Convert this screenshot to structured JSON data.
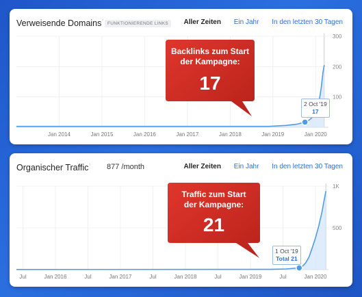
{
  "chart_data": [
    {
      "type": "area",
      "title": "Verweisende Domains",
      "badge": "FUNKTIONIERENDE LINKS",
      "subtitle": "",
      "tabs": [
        "Aller Zeiten",
        "Ein Jahr",
        "In den letzten 30 Tagen"
      ],
      "x_ticks": [
        "Jan 2014",
        "Jan 2015",
        "Jan 2016",
        "Jan 2017",
        "Jan 2018",
        "Jan 2019",
        "Jan 2020"
      ],
      "x_tick_years": [
        2014,
        2015,
        2016,
        2017,
        2018,
        2019,
        2020
      ],
      "xlim": [
        2013.0,
        2020.3
      ],
      "y_ticks": [
        "100",
        "200",
        "300"
      ],
      "y_tick_values": [
        100,
        200,
        300
      ],
      "ylim": [
        0,
        300
      ],
      "x": [
        2013.0,
        2018.9,
        2019.3,
        2019.55,
        2019.75,
        2019.83,
        2019.9,
        2019.97,
        2020.03,
        2020.08,
        2020.13,
        2020.17,
        2020.2
      ],
      "values": [
        3,
        3,
        6,
        10,
        17,
        22,
        30,
        42,
        60,
        85,
        130,
        180,
        205
      ],
      "marker": {
        "x": 2019.75,
        "value": 17,
        "date": "2 Oct '19",
        "value_label": "17"
      },
      "callout": {
        "text_line1": "Backlinks zum Start",
        "text_line2": "der Kampagne:",
        "number": "17"
      }
    },
    {
      "type": "area",
      "title": "Organischer Traffic",
      "badge": "",
      "subtitle": "877 /month",
      "tabs": [
        "Aller Zeiten",
        "Ein Jahr",
        "In den letzten 30 Tagen"
      ],
      "x_ticks": [
        "Jul",
        "Jan 2016",
        "Jul",
        "Jan 2017",
        "Jul",
        "Jan 2018",
        "Jul",
        "Jan 2019",
        "Jul",
        "Jan 2020"
      ],
      "x_tick_years": [
        2015.5,
        2016,
        2016.5,
        2017,
        2017.5,
        2018,
        2018.5,
        2019,
        2019.5,
        2020
      ],
      "xlim": [
        2015.4,
        2020.2
      ],
      "y_ticks": [
        "500",
        "1K"
      ],
      "y_tick_values": [
        500,
        1000
      ],
      "ylim": [
        0,
        1000
      ],
      "x": [
        2015.4,
        2019.3,
        2019.55,
        2019.75,
        2019.8,
        2019.85,
        2019.9,
        2019.95,
        2020.0,
        2020.05,
        2020.1,
        2020.13,
        2020.16
      ],
      "values": [
        2,
        3,
        8,
        21,
        40,
        80,
        150,
        260,
        380,
        520,
        690,
        820,
        940
      ],
      "marker": {
        "x": 2019.75,
        "value": 21,
        "date": "1 Oct '19",
        "value_label": "Total 21"
      },
      "callout": {
        "text_line1": "Traffic zum Start",
        "text_line2": "der Kampagne:",
        "number": "21"
      }
    }
  ]
}
